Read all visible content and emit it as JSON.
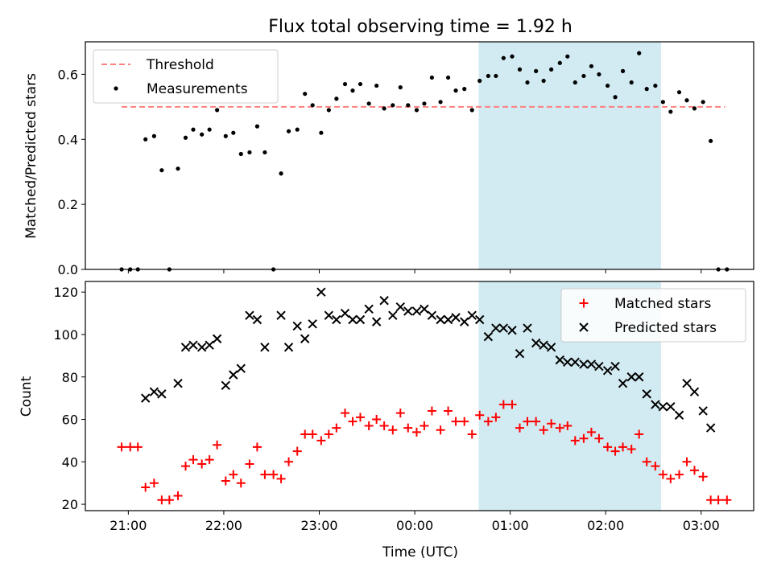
{
  "title": "Flux total observing time = 1.92 h",
  "colors": {
    "threshold": "#ff7f7f",
    "measurements": "#000000",
    "matched": "#ff0000",
    "predicted": "#000000",
    "highlight": "#add8e6"
  },
  "chart_data": [
    {
      "type": "scatter",
      "ylabel": "Matched/Predicted stars",
      "ylim": [
        0,
        0.7
      ],
      "yticks": [
        0.0,
        0.2,
        0.4,
        0.6
      ],
      "yticklabels": [
        "0.0",
        "0.2",
        "0.4",
        "0.6"
      ],
      "highlight_span_hours": [
        24.67,
        26.58
      ],
      "legend": {
        "position": "top-left",
        "entries": [
          "Threshold",
          "Measurements"
        ]
      },
      "series": [
        {
          "name": "Threshold",
          "kind": "dashed-line",
          "x": [
            20.93,
            27.25
          ],
          "y": [
            0.5,
            0.5
          ]
        },
        {
          "name": "Measurements",
          "kind": "dots",
          "points": [
            [
              20.93,
              0.0
            ],
            [
              21.02,
              0.0
            ],
            [
              21.1,
              0.0
            ],
            [
              21.18,
              0.4
            ],
            [
              21.27,
              0.41
            ],
            [
              21.35,
              0.305
            ],
            [
              21.43,
              0.0
            ],
            [
              21.52,
              0.31
            ],
            [
              21.6,
              0.405
            ],
            [
              21.68,
              0.43
            ],
            [
              21.77,
              0.415
            ],
            [
              21.85,
              0.43
            ],
            [
              21.93,
              0.49
            ],
            [
              22.02,
              0.41
            ],
            [
              22.1,
              0.42
            ],
            [
              22.18,
              0.355
            ],
            [
              22.27,
              0.36
            ],
            [
              22.35,
              0.44
            ],
            [
              22.43,
              0.36
            ],
            [
              22.52,
              0.0
            ],
            [
              22.6,
              0.295
            ],
            [
              22.68,
              0.425
            ],
            [
              22.77,
              0.43
            ],
            [
              22.85,
              0.54
            ],
            [
              22.93,
              0.505
            ],
            [
              23.02,
              0.42
            ],
            [
              23.1,
              0.49
            ],
            [
              23.18,
              0.525
            ],
            [
              23.27,
              0.57
            ],
            [
              23.35,
              0.55
            ],
            [
              23.43,
              0.57
            ],
            [
              23.52,
              0.51
            ],
            [
              23.6,
              0.565
            ],
            [
              23.68,
              0.495
            ],
            [
              23.77,
              0.505
            ],
            [
              23.85,
              0.56
            ],
            [
              23.93,
              0.505
            ],
            [
              24.02,
              0.49
            ],
            [
              24.1,
              0.51
            ],
            [
              24.18,
              0.59
            ],
            [
              24.27,
              0.515
            ],
            [
              24.35,
              0.59
            ],
            [
              24.43,
              0.55
            ],
            [
              24.52,
              0.555
            ],
            [
              24.6,
              0.49
            ],
            [
              24.68,
              0.58
            ],
            [
              24.77,
              0.595
            ],
            [
              24.85,
              0.595
            ],
            [
              24.93,
              0.65
            ],
            [
              25.02,
              0.655
            ],
            [
              25.1,
              0.615
            ],
            [
              25.18,
              0.575
            ],
            [
              25.27,
              0.61
            ],
            [
              25.35,
              0.58
            ],
            [
              25.43,
              0.615
            ],
            [
              25.52,
              0.635
            ],
            [
              25.6,
              0.655
            ],
            [
              25.68,
              0.575
            ],
            [
              25.77,
              0.595
            ],
            [
              25.85,
              0.625
            ],
            [
              25.93,
              0.6
            ],
            [
              26.02,
              0.565
            ],
            [
              26.1,
              0.53
            ],
            [
              26.18,
              0.61
            ],
            [
              26.27,
              0.575
            ],
            [
              26.35,
              0.665
            ],
            [
              26.43,
              0.555
            ],
            [
              26.52,
              0.565
            ],
            [
              26.6,
              0.515
            ],
            [
              26.68,
              0.485
            ],
            [
              26.77,
              0.545
            ],
            [
              26.85,
              0.52
            ],
            [
              26.93,
              0.495
            ],
            [
              27.02,
              0.515
            ],
            [
              27.1,
              0.395
            ],
            [
              27.18,
              0.0
            ],
            [
              27.27,
              0.0
            ]
          ]
        }
      ]
    },
    {
      "type": "scatter",
      "xlabel": "Time (UTC)",
      "ylabel": "Count",
      "ylim": [
        17,
        125
      ],
      "yticks": [
        20,
        40,
        60,
        80,
        100,
        120
      ],
      "yticklabels": [
        "20",
        "40",
        "60",
        "80",
        "100",
        "120"
      ],
      "xlim_hours": [
        20.55,
        27.55
      ],
      "xticks_hours": [
        21,
        22,
        23,
        24,
        25,
        26,
        27
      ],
      "xticklabels": [
        "21:00",
        "22:00",
        "23:00",
        "00:00",
        "01:00",
        "02:00",
        "03:00"
      ],
      "highlight_span_hours": [
        24.67,
        26.58
      ],
      "legend": {
        "position": "top-right",
        "entries": [
          "Matched stars",
          "Predicted stars"
        ]
      },
      "series": [
        {
          "name": "Matched stars",
          "kind": "plus",
          "points": [
            [
              20.93,
              47
            ],
            [
              21.02,
              47
            ],
            [
              21.1,
              47
            ],
            [
              21.18,
              28
            ],
            [
              21.27,
              30
            ],
            [
              21.35,
              22
            ],
            [
              21.43,
              22
            ],
            [
              21.52,
              24
            ],
            [
              21.6,
              38
            ],
            [
              21.68,
              41
            ],
            [
              21.77,
              39
            ],
            [
              21.85,
              41
            ],
            [
              21.93,
              48
            ],
            [
              22.02,
              31
            ],
            [
              22.1,
              34
            ],
            [
              22.18,
              30
            ],
            [
              22.27,
              39
            ],
            [
              22.35,
              47
            ],
            [
              22.43,
              34
            ],
            [
              22.52,
              34
            ],
            [
              22.6,
              32
            ],
            [
              22.68,
              40
            ],
            [
              22.77,
              45
            ],
            [
              22.85,
              53
            ],
            [
              22.93,
              53
            ],
            [
              23.02,
              50
            ],
            [
              23.1,
              53
            ],
            [
              23.18,
              56
            ],
            [
              23.27,
              63
            ],
            [
              23.35,
              59
            ],
            [
              23.43,
              61
            ],
            [
              23.52,
              57
            ],
            [
              23.6,
              60
            ],
            [
              23.68,
              57
            ],
            [
              23.77,
              55
            ],
            [
              23.85,
              63
            ],
            [
              23.93,
              56
            ],
            [
              24.02,
              54
            ],
            [
              24.1,
              57
            ],
            [
              24.18,
              64
            ],
            [
              24.27,
              55
            ],
            [
              24.35,
              64
            ],
            [
              24.43,
              59
            ],
            [
              24.52,
              59
            ],
            [
              24.6,
              53
            ],
            [
              24.68,
              62
            ],
            [
              24.77,
              59
            ],
            [
              24.85,
              61
            ],
            [
              24.93,
              67
            ],
            [
              25.02,
              67
            ],
            [
              25.1,
              56
            ],
            [
              25.18,
              59
            ],
            [
              25.27,
              59
            ],
            [
              25.35,
              55
            ],
            [
              25.43,
              58
            ],
            [
              25.52,
              56
            ],
            [
              25.6,
              57
            ],
            [
              25.68,
              50
            ],
            [
              25.77,
              51
            ],
            [
              25.85,
              54
            ],
            [
              25.93,
              51
            ],
            [
              26.02,
              47
            ],
            [
              26.1,
              45
            ],
            [
              26.18,
              47
            ],
            [
              26.27,
              46
            ],
            [
              26.35,
              53
            ],
            [
              26.43,
              40
            ],
            [
              26.52,
              38
            ],
            [
              26.6,
              34
            ],
            [
              26.68,
              32
            ],
            [
              26.77,
              34
            ],
            [
              26.85,
              40
            ],
            [
              26.93,
              36
            ],
            [
              27.02,
              33
            ],
            [
              27.1,
              22
            ],
            [
              27.18,
              22
            ],
            [
              27.27,
              22
            ]
          ]
        },
        {
          "name": "Predicted stars",
          "kind": "cross",
          "points": [
            [
              21.18,
              70
            ],
            [
              21.27,
              73
            ],
            [
              21.35,
              72
            ],
            [
              21.52,
              77
            ],
            [
              21.6,
              94
            ],
            [
              21.68,
              95
            ],
            [
              21.77,
              94
            ],
            [
              21.85,
              95
            ],
            [
              21.93,
              98
            ],
            [
              22.02,
              76
            ],
            [
              22.1,
              81
            ],
            [
              22.18,
              84
            ],
            [
              22.27,
              109
            ],
            [
              22.35,
              107
            ],
            [
              22.43,
              94
            ],
            [
              22.6,
              109
            ],
            [
              22.68,
              94
            ],
            [
              22.77,
              104
            ],
            [
              22.85,
              98
            ],
            [
              22.93,
              105
            ],
            [
              23.02,
              120
            ],
            [
              23.1,
              109
            ],
            [
              23.18,
              107
            ],
            [
              23.27,
              110
            ],
            [
              23.35,
              107
            ],
            [
              23.43,
              107
            ],
            [
              23.52,
              112
            ],
            [
              23.6,
              106
            ],
            [
              23.68,
              116
            ],
            [
              23.77,
              109
            ],
            [
              23.85,
              113
            ],
            [
              23.93,
              111
            ],
            [
              24.02,
              111
            ],
            [
              24.1,
              112
            ],
            [
              24.18,
              109
            ],
            [
              24.27,
              107
            ],
            [
              24.35,
              107
            ],
            [
              24.43,
              108
            ],
            [
              24.52,
              106
            ],
            [
              24.6,
              109
            ],
            [
              24.68,
              107
            ],
            [
              24.77,
              99
            ],
            [
              24.85,
              103
            ],
            [
              24.93,
              103
            ],
            [
              25.02,
              102
            ],
            [
              25.1,
              91
            ],
            [
              25.18,
              103
            ],
            [
              25.27,
              96
            ],
            [
              25.35,
              95
            ],
            [
              25.43,
              94
            ],
            [
              25.52,
              88
            ],
            [
              25.6,
              87
            ],
            [
              25.68,
              87
            ],
            [
              25.77,
              86
            ],
            [
              25.85,
              86
            ],
            [
              25.93,
              85
            ],
            [
              26.02,
              83
            ],
            [
              26.1,
              85
            ],
            [
              26.18,
              77
            ],
            [
              26.27,
              80
            ],
            [
              26.35,
              80
            ],
            [
              26.43,
              72
            ],
            [
              26.52,
              67
            ],
            [
              26.6,
              66
            ],
            [
              26.68,
              66
            ],
            [
              26.77,
              62
            ],
            [
              26.85,
              77
            ],
            [
              26.93,
              73
            ],
            [
              27.02,
              64
            ],
            [
              27.1,
              56
            ]
          ]
        }
      ]
    }
  ]
}
